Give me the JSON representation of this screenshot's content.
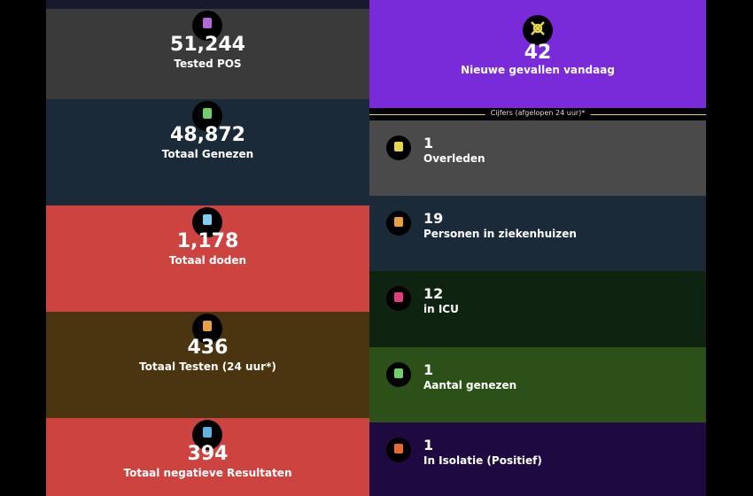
{
  "left_tiles": [
    {
      "value": "51,244",
      "label": "Tested POS"
    },
    {
      "value": "48,872",
      "label": "Totaal Genezen"
    },
    {
      "value": "1,178",
      "label": "Totaal doden"
    },
    {
      "value": "436",
      "label": "Totaal Testen (24 uur*)"
    },
    {
      "value": "394",
      "label": "Totaal negatieve Resultaten"
    }
  ],
  "headline": {
    "value": "42",
    "label": "Nieuwe gevallen vandaag"
  },
  "divider": "Cijfers (afgelopen 24 uur)*",
  "right_tiles": [
    {
      "value": "1",
      "label": "Overleden"
    },
    {
      "value": "19",
      "label": "Personen in ziekenhuizen"
    },
    {
      "value": "12",
      "label": "in ICU"
    },
    {
      "value": "1",
      "label": "Aantal genezen"
    },
    {
      "value": "1",
      "label": "In Isolatie (Positief)"
    }
  ]
}
